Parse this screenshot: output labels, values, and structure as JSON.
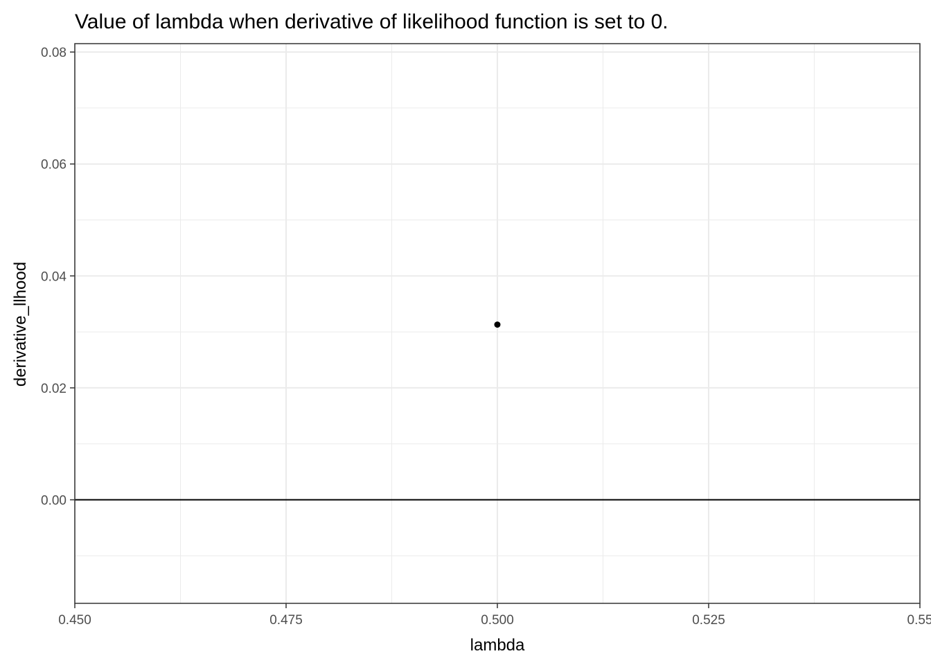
{
  "chart_data": {
    "type": "scatter",
    "title": "Value of lambda when derivative of likelihood function is set to 0.",
    "xlabel": "lambda",
    "ylabel": "derivative_llhood",
    "xlim": [
      0.45,
      0.55
    ],
    "ylim": [
      -0.0185,
      0.0815
    ],
    "x_ticks": [
      0.45,
      0.475,
      0.5,
      0.525,
      0.55
    ],
    "x_tick_labels": [
      "0.450",
      "0.475",
      "0.500",
      "0.525",
      "0.55"
    ],
    "y_ticks": [
      0.0,
      0.02,
      0.04,
      0.06,
      0.08
    ],
    "y_tick_labels": [
      "0.00",
      "0.02",
      "0.04",
      "0.06",
      "0.08"
    ],
    "grid": true,
    "hline": 0,
    "points": [
      {
        "x": 0.5,
        "y": 0.0313
      }
    ],
    "colors": {
      "point": "#000000",
      "grid": "#ebebeb",
      "panel_border": "#333333",
      "hline": "#000000"
    }
  }
}
